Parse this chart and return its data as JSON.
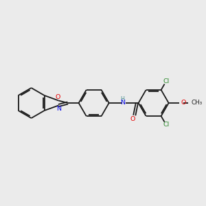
{
  "background_color": "#ebebeb",
  "bond_color": "#1a1a1a",
  "figsize": [
    3.0,
    3.0
  ],
  "dpi": 100,
  "colors": {
    "O": "#e60000",
    "N": "#0000e6",
    "NH": "#4a8f8f",
    "Cl": "#2e8b2e",
    "C": "#1a1a1a"
  },
  "lw": 1.3,
  "fs": 6.8,
  "fs_small": 5.8
}
